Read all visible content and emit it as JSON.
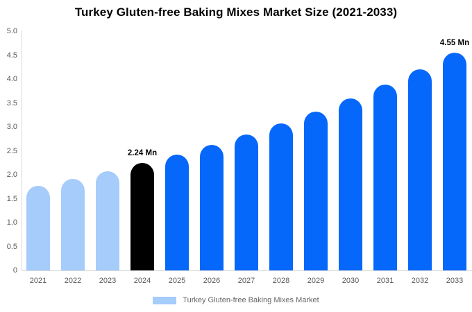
{
  "title": "Turkey Gluten-free Baking Mixes Market Size (2021-2033)",
  "legend": {
    "label": "Turkey Gluten-free Baking Mixes Market",
    "swatch_color": "#a5ccfa"
  },
  "colors": {
    "historical_bar": "#a5ccfa",
    "base_year_bar": "#000000",
    "forecast_bar": "#0667fb",
    "axis_line": "#d9d9d9",
    "tick_text": "#595959",
    "annotation_text": "#000000",
    "legend_text": "#666666",
    "title_text": "#000000",
    "background": "#ffffff"
  },
  "chart_data": {
    "type": "bar",
    "title": "Turkey Gluten-free Baking Mixes Market Size (2021-2033)",
    "xlabel": "",
    "ylabel": "",
    "unit": "Mn",
    "categories": [
      "2021",
      "2022",
      "2023",
      "2024",
      "2025",
      "2026",
      "2027",
      "2028",
      "2029",
      "2030",
      "2031",
      "2032",
      "2033"
    ],
    "values": [
      1.77,
      1.91,
      2.07,
      2.24,
      2.42,
      2.62,
      2.84,
      3.07,
      3.32,
      3.59,
      3.89,
      4.21,
      4.55
    ],
    "bar_colors": [
      "#a5ccfa",
      "#a5ccfa",
      "#a5ccfa",
      "#000000",
      "#0667fb",
      "#0667fb",
      "#0667fb",
      "#0667fb",
      "#0667fb",
      "#0667fb",
      "#0667fb",
      "#0667fb",
      "#0667fb"
    ],
    "annotations": [
      {
        "index": 3,
        "text": "2.24 Mn"
      },
      {
        "index": 12,
        "text": "4.55 Mn"
      }
    ],
    "ylim": [
      0,
      5
    ],
    "ytick_step": 0.5,
    "yticks": [
      {
        "label": "5.0",
        "value": 5.0
      },
      {
        "label": "4.5",
        "value": 4.5
      },
      {
        "label": "4.0",
        "value": 4.0
      },
      {
        "label": "3.5",
        "value": 3.5
      },
      {
        "label": "3.0",
        "value": 3.0
      },
      {
        "label": "2.5",
        "value": 2.5
      },
      {
        "label": "2.0",
        "value": 2.0
      },
      {
        "label": "1.5",
        "value": 1.5
      },
      {
        "label": "1.0",
        "value": 1.0
      },
      {
        "label": "0.5",
        "value": 0.5
      },
      {
        "label": "0",
        "value": 0
      }
    ],
    "grid": false,
    "legend_position": "bottom",
    "legend_entries": [
      "Turkey Gluten-free Baking Mixes Market"
    ]
  }
}
